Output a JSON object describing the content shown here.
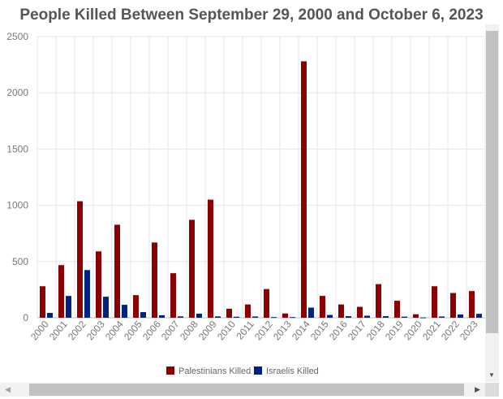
{
  "chart_data": {
    "type": "bar",
    "title": "People Killed Between September 29, 2000 and October 6, 2023",
    "xlabel": "",
    "ylabel": "",
    "ylim": [
      0,
      2500
    ],
    "yticks": [
      "0",
      "500",
      "1000",
      "1500",
      "2000",
      "2500"
    ],
    "grid": true,
    "legend_position": "bottom",
    "categories": [
      "2000",
      "2001",
      "2002",
      "2003",
      "2004",
      "2005",
      "2006",
      "2007",
      "2008",
      "2009",
      "2010",
      "2011",
      "2012",
      "2013",
      "2014",
      "2015",
      "2016",
      "2017",
      "2018",
      "2019",
      "2020",
      "2021",
      "2022",
      "2023"
    ],
    "series": [
      {
        "name": "Palestinians Killed",
        "color": "#8b0000",
        "values": [
          280,
          468,
          1036,
          590,
          827,
          201,
          669,
          396,
          871,
          1050,
          80,
          118,
          255,
          38,
          2280,
          194,
          118,
          97,
          299,
          151,
          31,
          280,
          220,
          237
        ]
      },
      {
        "name": "Israelis Killed",
        "color": "#00237f",
        "values": [
          43,
          194,
          424,
          187,
          115,
          50,
          22,
          12,
          36,
          12,
          9,
          11,
          6,
          6,
          90,
          25,
          14,
          18,
          14,
          10,
          3,
          11,
          29,
          35
        ]
      }
    ]
  },
  "scrollbar_icons": {
    "up": "scroll-up-icon",
    "down": "scroll-down-icon",
    "left": "scroll-left-icon",
    "right": "scroll-right-icon"
  }
}
